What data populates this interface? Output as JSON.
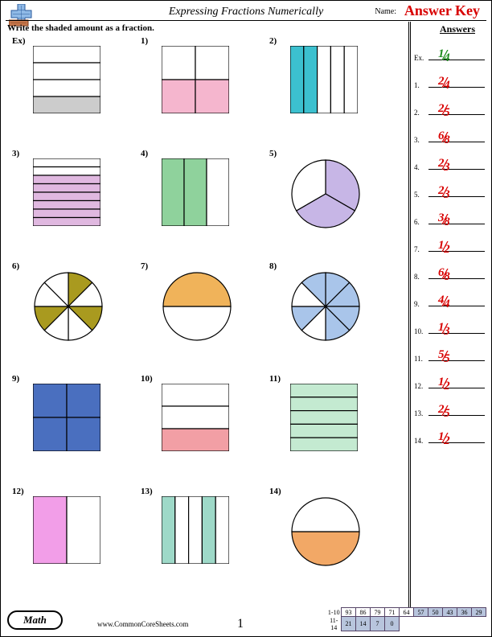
{
  "header": {
    "title": "Expressing Fractions Numerically",
    "name_label": "Name:",
    "answer_key": "Answer Key"
  },
  "instruction": "Write the shaded amount as a fraction.",
  "answers_heading": "Answers",
  "logo": {
    "plus_color": "#8fb9e6",
    "minus_color": "#c97a4e"
  },
  "problems": [
    {
      "label": "Ex)",
      "type": "rect-rows",
      "parts": 4,
      "shaded": [
        3
      ],
      "color": "#cccccc"
    },
    {
      "label": "1)",
      "type": "rect-grid",
      "rows": 2,
      "cols": 2,
      "shaded": [
        2,
        3
      ],
      "color": "#f5b6ce"
    },
    {
      "label": "2)",
      "type": "rect-cols",
      "parts": 5,
      "shaded": [
        0,
        1
      ],
      "color": "#3cc0cf"
    },
    {
      "label": "3)",
      "type": "rect-rows",
      "parts": 8,
      "shaded": [
        2,
        3,
        4,
        5,
        6,
        7
      ],
      "color": "#e0b8e0"
    },
    {
      "label": "4)",
      "type": "rect-cols",
      "parts": 3,
      "shaded": [
        0,
        1
      ],
      "color": "#8fd29c"
    },
    {
      "label": "5)",
      "type": "pie",
      "parts": 3,
      "shaded": [
        0,
        1
      ],
      "color": "#c7b6e6",
      "start_angle": -90
    },
    {
      "label": "6)",
      "type": "pie",
      "parts": 8,
      "shaded": [
        0,
        2,
        5
      ],
      "color": "#a99a1f",
      "start_angle": -90
    },
    {
      "label": "7)",
      "type": "pie",
      "parts": 2,
      "shaded": [
        1
      ],
      "color": "#f0b35a",
      "start_angle": 0
    },
    {
      "label": "8)",
      "type": "pie",
      "parts": 8,
      "shaded": [
        0,
        1,
        2,
        3,
        5,
        7
      ],
      "color": "#a9c5ea",
      "start_angle": -90
    },
    {
      "label": "9)",
      "type": "rect-grid",
      "rows": 2,
      "cols": 2,
      "shaded": [
        0,
        1,
        2,
        3
      ],
      "color": "#4a6fbf"
    },
    {
      "label": "10)",
      "type": "rect-rows",
      "parts": 3,
      "shaded": [
        2
      ],
      "color": "#f29fa5"
    },
    {
      "label": "11)",
      "type": "rect-rows",
      "parts": 5,
      "shaded": [
        0,
        1,
        2,
        3,
        4
      ],
      "color": "#c4ead1"
    },
    {
      "label": "12)",
      "type": "rect-cols",
      "parts": 2,
      "shaded": [
        0
      ],
      "color": "#f29ee8"
    },
    {
      "label": "13)",
      "type": "rect-cols",
      "parts": 5,
      "shaded": [
        0,
        3
      ],
      "color": "#9ed9c8"
    },
    {
      "label": "14)",
      "type": "pie",
      "parts": 2,
      "shaded": [
        0
      ],
      "color": "#f2a866",
      "start_angle": 0
    }
  ],
  "answers": [
    {
      "label": "Ex.",
      "num": "1",
      "den": "4",
      "color": "#1b8a1b"
    },
    {
      "label": "1.",
      "num": "2",
      "den": "4",
      "color": "#d80000"
    },
    {
      "label": "2.",
      "num": "2",
      "den": "5",
      "color": "#d80000"
    },
    {
      "label": "3.",
      "num": "6",
      "den": "8",
      "color": "#d80000"
    },
    {
      "label": "4.",
      "num": "2",
      "den": "3",
      "color": "#d80000"
    },
    {
      "label": "5.",
      "num": "2",
      "den": "3",
      "color": "#d80000"
    },
    {
      "label": "6.",
      "num": "3",
      "den": "8",
      "color": "#d80000"
    },
    {
      "label": "7.",
      "num": "1",
      "den": "2",
      "color": "#d80000"
    },
    {
      "label": "8.",
      "num": "6",
      "den": "8",
      "color": "#d80000"
    },
    {
      "label": "9.",
      "num": "4",
      "den": "4",
      "color": "#d80000"
    },
    {
      "label": "10.",
      "num": "1",
      "den": "3",
      "color": "#d80000"
    },
    {
      "label": "11.",
      "num": "5",
      "den": "5",
      "color": "#d80000"
    },
    {
      "label": "12.",
      "num": "1",
      "den": "2",
      "color": "#d80000"
    },
    {
      "label": "13.",
      "num": "2",
      "den": "5",
      "color": "#d80000"
    },
    {
      "label": "14.",
      "num": "1",
      "den": "2",
      "color": "#d80000"
    }
  ],
  "footer": {
    "subject": "Math",
    "url": "www.CommonCoreSheets.com",
    "page": "1",
    "score_rows": [
      {
        "label": "1-10",
        "cells": [
          "93",
          "86",
          "79",
          "71",
          "64",
          "57",
          "50",
          "43",
          "36",
          "29"
        ],
        "shaded_from": 5
      },
      {
        "label": "11-14",
        "cells": [
          "21",
          "14",
          "7",
          "0"
        ],
        "shaded_from": 0
      }
    ],
    "score_shade_color": "#b8c5dd"
  },
  "shape_style": {
    "rect_size": 84,
    "circle_r": 42,
    "stroke": "#000000",
    "stroke_width": 1.2,
    "bg": "#ffffff"
  }
}
